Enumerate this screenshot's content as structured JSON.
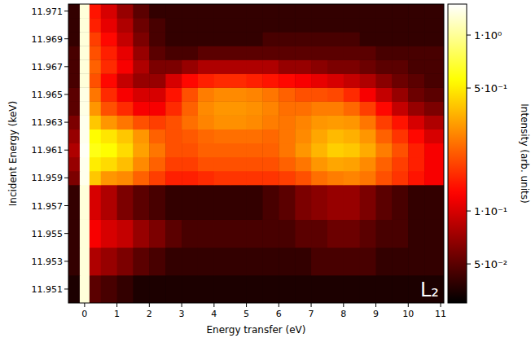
{
  "chart_data": {
    "type": "heatmap",
    "xlabel": "Energy transfer (eV)",
    "ylabel": "Incident Energy (keV)",
    "colorbar_label": "Intensity (arb. units)",
    "annotation": "L₂",
    "xlim": [
      -0.5,
      11.1
    ],
    "ylim": [
      11.95,
      11.9715
    ],
    "xticks": [
      0,
      1,
      2,
      3,
      4,
      5,
      6,
      7,
      8,
      9,
      10,
      11
    ],
    "yticks": [
      11.951,
      11.953,
      11.955,
      11.957,
      11.959,
      11.961,
      11.963,
      11.965,
      11.967,
      11.969,
      11.971
    ],
    "x_edges": [
      -0.5,
      -0.15,
      0.15,
      0.5,
      1,
      1.5,
      2,
      2.5,
      3,
      3.5,
      4,
      4.5,
      5,
      5.5,
      6,
      6.5,
      7,
      7.5,
      8,
      8.5,
      9,
      9.5,
      10,
      10.5,
      11.1
    ],
    "y_edges": [
      11.95,
      11.952,
      11.954,
      11.956,
      11.9585,
      11.9595,
      11.9605,
      11.9615,
      11.9625,
      11.9635,
      11.9645,
      11.9655,
      11.9665,
      11.9675,
      11.9685,
      11.9695,
      11.9705,
      11.9715
    ],
    "cells": [
      [
        0.035,
        1.3,
        0.05,
        0.045,
        0.04,
        0.035,
        0.035,
        0.035,
        0.035,
        0.035,
        0.035,
        0.035,
        0.035,
        0.035,
        0.035,
        0.035,
        0.035,
        0.035,
        0.035,
        0.035,
        0.035,
        0.035,
        0.035,
        0.035
      ],
      [
        0.04,
        1.3,
        0.08,
        0.07,
        0.06,
        0.05,
        0.045,
        0.04,
        0.04,
        0.04,
        0.04,
        0.04,
        0.04,
        0.04,
        0.04,
        0.04,
        0.045,
        0.045,
        0.045,
        0.045,
        0.04,
        0.04,
        0.04,
        0.04
      ],
      [
        0.04,
        1.3,
        0.12,
        0.1,
        0.09,
        0.07,
        0.06,
        0.05,
        0.045,
        0.045,
        0.045,
        0.045,
        0.045,
        0.045,
        0.045,
        0.05,
        0.05,
        0.055,
        0.055,
        0.05,
        0.045,
        0.045,
        0.04,
        0.04
      ],
      [
        0.04,
        1.3,
        0.1,
        0.08,
        0.06,
        0.05,
        0.045,
        0.04,
        0.04,
        0.04,
        0.04,
        0.04,
        0.04,
        0.045,
        0.05,
        0.06,
        0.065,
        0.07,
        0.07,
        0.06,
        0.05,
        0.045,
        0.04,
        0.04
      ],
      [
        0.06,
        1.4,
        0.4,
        0.3,
        0.28,
        0.22,
        0.18,
        0.15,
        0.15,
        0.16,
        0.17,
        0.17,
        0.17,
        0.17,
        0.18,
        0.2,
        0.24,
        0.26,
        0.27,
        0.25,
        0.2,
        0.17,
        0.14,
        0.12
      ],
      [
        0.07,
        1.4,
        0.5,
        0.45,
        0.38,
        0.28,
        0.22,
        0.18,
        0.18,
        0.2,
        0.2,
        0.2,
        0.2,
        0.2,
        0.22,
        0.25,
        0.3,
        0.33,
        0.32,
        0.28,
        0.22,
        0.18,
        0.15,
        0.12
      ],
      [
        0.08,
        1.45,
        0.6,
        0.55,
        0.45,
        0.32,
        0.25,
        0.2,
        0.2,
        0.22,
        0.22,
        0.22,
        0.22,
        0.22,
        0.25,
        0.3,
        0.36,
        0.42,
        0.4,
        0.34,
        0.26,
        0.2,
        0.15,
        0.12
      ],
      [
        0.07,
        1.4,
        0.55,
        0.48,
        0.4,
        0.3,
        0.22,
        0.2,
        0.21,
        0.23,
        0.24,
        0.24,
        0.24,
        0.23,
        0.25,
        0.28,
        0.33,
        0.37,
        0.35,
        0.3,
        0.22,
        0.17,
        0.13,
        0.1
      ],
      [
        0.06,
        1.4,
        0.4,
        0.3,
        0.25,
        0.2,
        0.18,
        0.2,
        0.24,
        0.27,
        0.29,
        0.29,
        0.28,
        0.26,
        0.25,
        0.27,
        0.3,
        0.31,
        0.3,
        0.25,
        0.18,
        0.14,
        0.1,
        0.08
      ],
      [
        0.05,
        1.35,
        0.3,
        0.2,
        0.16,
        0.12,
        0.12,
        0.16,
        0.22,
        0.28,
        0.3,
        0.3,
        0.29,
        0.27,
        0.24,
        0.24,
        0.26,
        0.26,
        0.23,
        0.18,
        0.13,
        0.09,
        0.07,
        0.06
      ],
      [
        0.05,
        1.35,
        0.25,
        0.16,
        0.12,
        0.1,
        0.1,
        0.14,
        0.2,
        0.26,
        0.28,
        0.28,
        0.27,
        0.25,
        0.22,
        0.2,
        0.2,
        0.19,
        0.16,
        0.12,
        0.09,
        0.07,
        0.055,
        0.05
      ],
      [
        0.045,
        1.3,
        0.2,
        0.13,
        0.09,
        0.07,
        0.07,
        0.1,
        0.13,
        0.15,
        0.16,
        0.16,
        0.15,
        0.14,
        0.13,
        0.12,
        0.11,
        0.1,
        0.09,
        0.08,
        0.065,
        0.055,
        0.05,
        0.045
      ],
      [
        0.045,
        1.3,
        0.22,
        0.16,
        0.12,
        0.08,
        0.06,
        0.06,
        0.07,
        0.08,
        0.08,
        0.08,
        0.08,
        0.08,
        0.07,
        0.07,
        0.065,
        0.06,
        0.06,
        0.055,
        0.05,
        0.05,
        0.045,
        0.045
      ],
      [
        0.045,
        1.3,
        0.2,
        0.15,
        0.11,
        0.07,
        0.05,
        0.045,
        0.045,
        0.05,
        0.05,
        0.05,
        0.05,
        0.05,
        0.05,
        0.05,
        0.05,
        0.05,
        0.05,
        0.05,
        0.045,
        0.045,
        0.045,
        0.045
      ],
      [
        0.04,
        1.3,
        0.18,
        0.13,
        0.09,
        0.06,
        0.045,
        0.04,
        0.04,
        0.04,
        0.04,
        0.04,
        0.04,
        0.045,
        0.045,
        0.045,
        0.045,
        0.045,
        0.045,
        0.04,
        0.04,
        0.04,
        0.04,
        0.04
      ],
      [
        0.04,
        1.3,
        0.15,
        0.11,
        0.08,
        0.055,
        0.045,
        0.04,
        0.04,
        0.04,
        0.04,
        0.04,
        0.04,
        0.04,
        0.04,
        0.04,
        0.04,
        0.04,
        0.04,
        0.04,
        0.04,
        0.04,
        0.04,
        0.04
      ],
      [
        0.04,
        1.3,
        0.14,
        0.1,
        0.07,
        0.05,
        0.04,
        0.04,
        0.04,
        0.04,
        0.04,
        0.04,
        0.04,
        0.04,
        0.04,
        0.04,
        0.04,
        0.04,
        0.04,
        0.04,
        0.04,
        0.04,
        0.04,
        0.04
      ]
    ],
    "clim": [
      0.03,
      1.5
    ],
    "cticks": [
      {
        "value": 0.05,
        "label": "5·10⁻²"
      },
      {
        "value": 0.1,
        "label": "1·10⁻¹"
      },
      {
        "value": 0.5,
        "label": "5·10⁻¹"
      },
      {
        "value": 1,
        "label": "1·10⁰"
      }
    ]
  }
}
